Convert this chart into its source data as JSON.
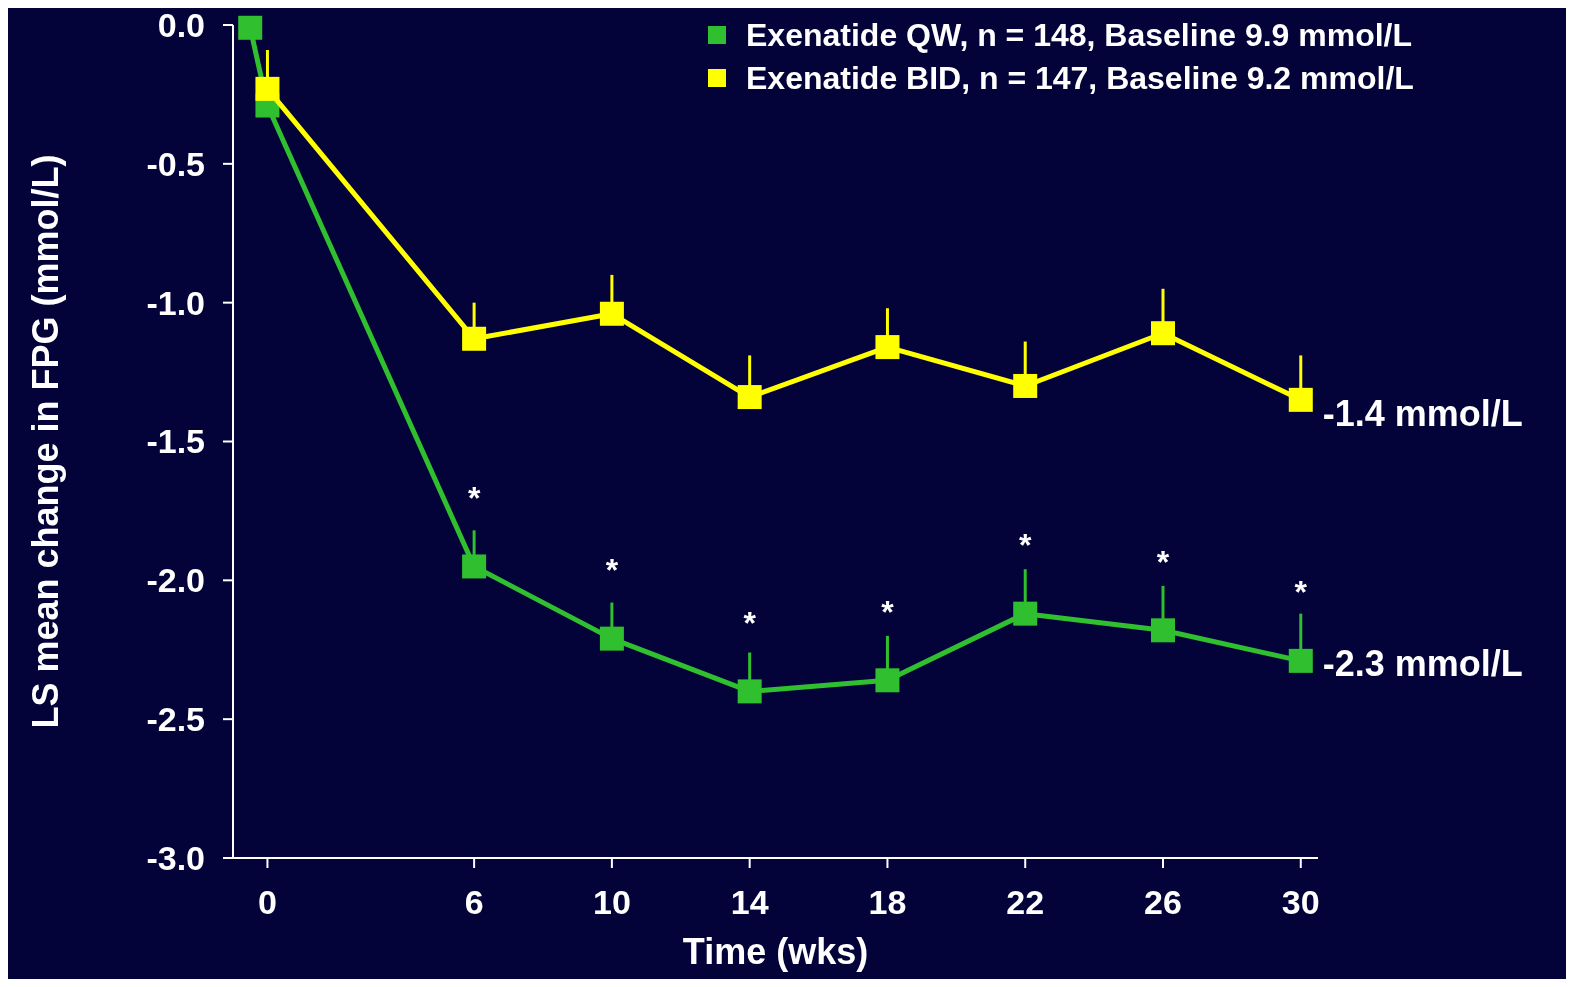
{
  "chart_data": {
    "type": "line",
    "xlabel": "Time (wks)",
    "ylabel": "LS mean change in FPG (mmol/L)",
    "xlim": [
      -1,
      30.5
    ],
    "ylim": [
      -3,
      0
    ],
    "xticks": [
      0,
      6,
      10,
      14,
      18,
      22,
      26,
      30
    ],
    "yticks": [
      {
        "value": 0,
        "label": "0.0"
      },
      {
        "value": -0.5,
        "label": "-0.5"
      },
      {
        "value": -1,
        "label": "-1.0"
      },
      {
        "value": -1.5,
        "label": "-1.5"
      },
      {
        "value": -2,
        "label": "-2.0"
      },
      {
        "value": -2.5,
        "label": "-2.5"
      },
      {
        "value": -3,
        "label": "-3.0"
      }
    ],
    "marker": "square",
    "legend": "top right",
    "grid": false,
    "series": [
      {
        "name": "Exenatide QW, n = 148, Baseline 9.9 mmol/L",
        "color": "#2fbf2f",
        "x": [
          -0.5,
          0,
          6,
          10,
          14,
          18,
          22,
          26,
          30
        ],
        "values": [
          -0.01,
          -0.29,
          -1.95,
          -2.21,
          -2.4,
          -2.36,
          -2.12,
          -2.18,
          -2.29
        ],
        "errors": [
          null,
          null,
          [
            -1.95,
            -1.82
          ],
          [
            -2.21,
            -2.08
          ],
          [
            -2.4,
            -2.26
          ],
          [
            -2.36,
            -2.2
          ],
          [
            -2.12,
            -1.96
          ],
          [
            -2.18,
            -2.02
          ],
          [
            -2.29,
            -2.12
          ]
        ]
      },
      {
        "name": "Exenatide BID, n = 147, Baseline 9.2 mmol/L",
        "color": "#ffff00",
        "x": [
          0,
          6,
          10,
          14,
          18,
          22,
          26,
          30
        ],
        "values": [
          -0.23,
          -1.13,
          -1.04,
          -1.34,
          -1.16,
          -1.3,
          -1.11,
          -1.35
        ],
        "errors": [
          [
            -0.23,
            -0.09
          ],
          [
            -1.13,
            -1.0
          ],
          [
            -1.04,
            -0.9
          ],
          [
            -1.34,
            -1.19
          ],
          [
            -1.16,
            -1.02
          ],
          [
            -1.3,
            -1.14
          ],
          [
            -1.11,
            -0.95
          ],
          [
            -1.35,
            -1.19
          ]
        ]
      }
    ],
    "annotations": [
      {
        "text": "*",
        "x": 6,
        "y": -1.95
      },
      {
        "text": "*",
        "x": 10,
        "y": -2.21
      },
      {
        "text": "*",
        "x": 14,
        "y": -2.4
      },
      {
        "text": "*",
        "x": 18,
        "y": -2.36
      },
      {
        "text": "*",
        "x": 22,
        "y": -2.12
      },
      {
        "text": "*",
        "x": 26,
        "y": -2.18
      },
      {
        "text": "*",
        "x": 30,
        "y": -2.29
      },
      {
        "text": "-1.4 mmol/L",
        "x": 30,
        "y": -1.4
      },
      {
        "text": "-2.3 mmol/L",
        "x": 30,
        "y": -2.3
      }
    ]
  }
}
